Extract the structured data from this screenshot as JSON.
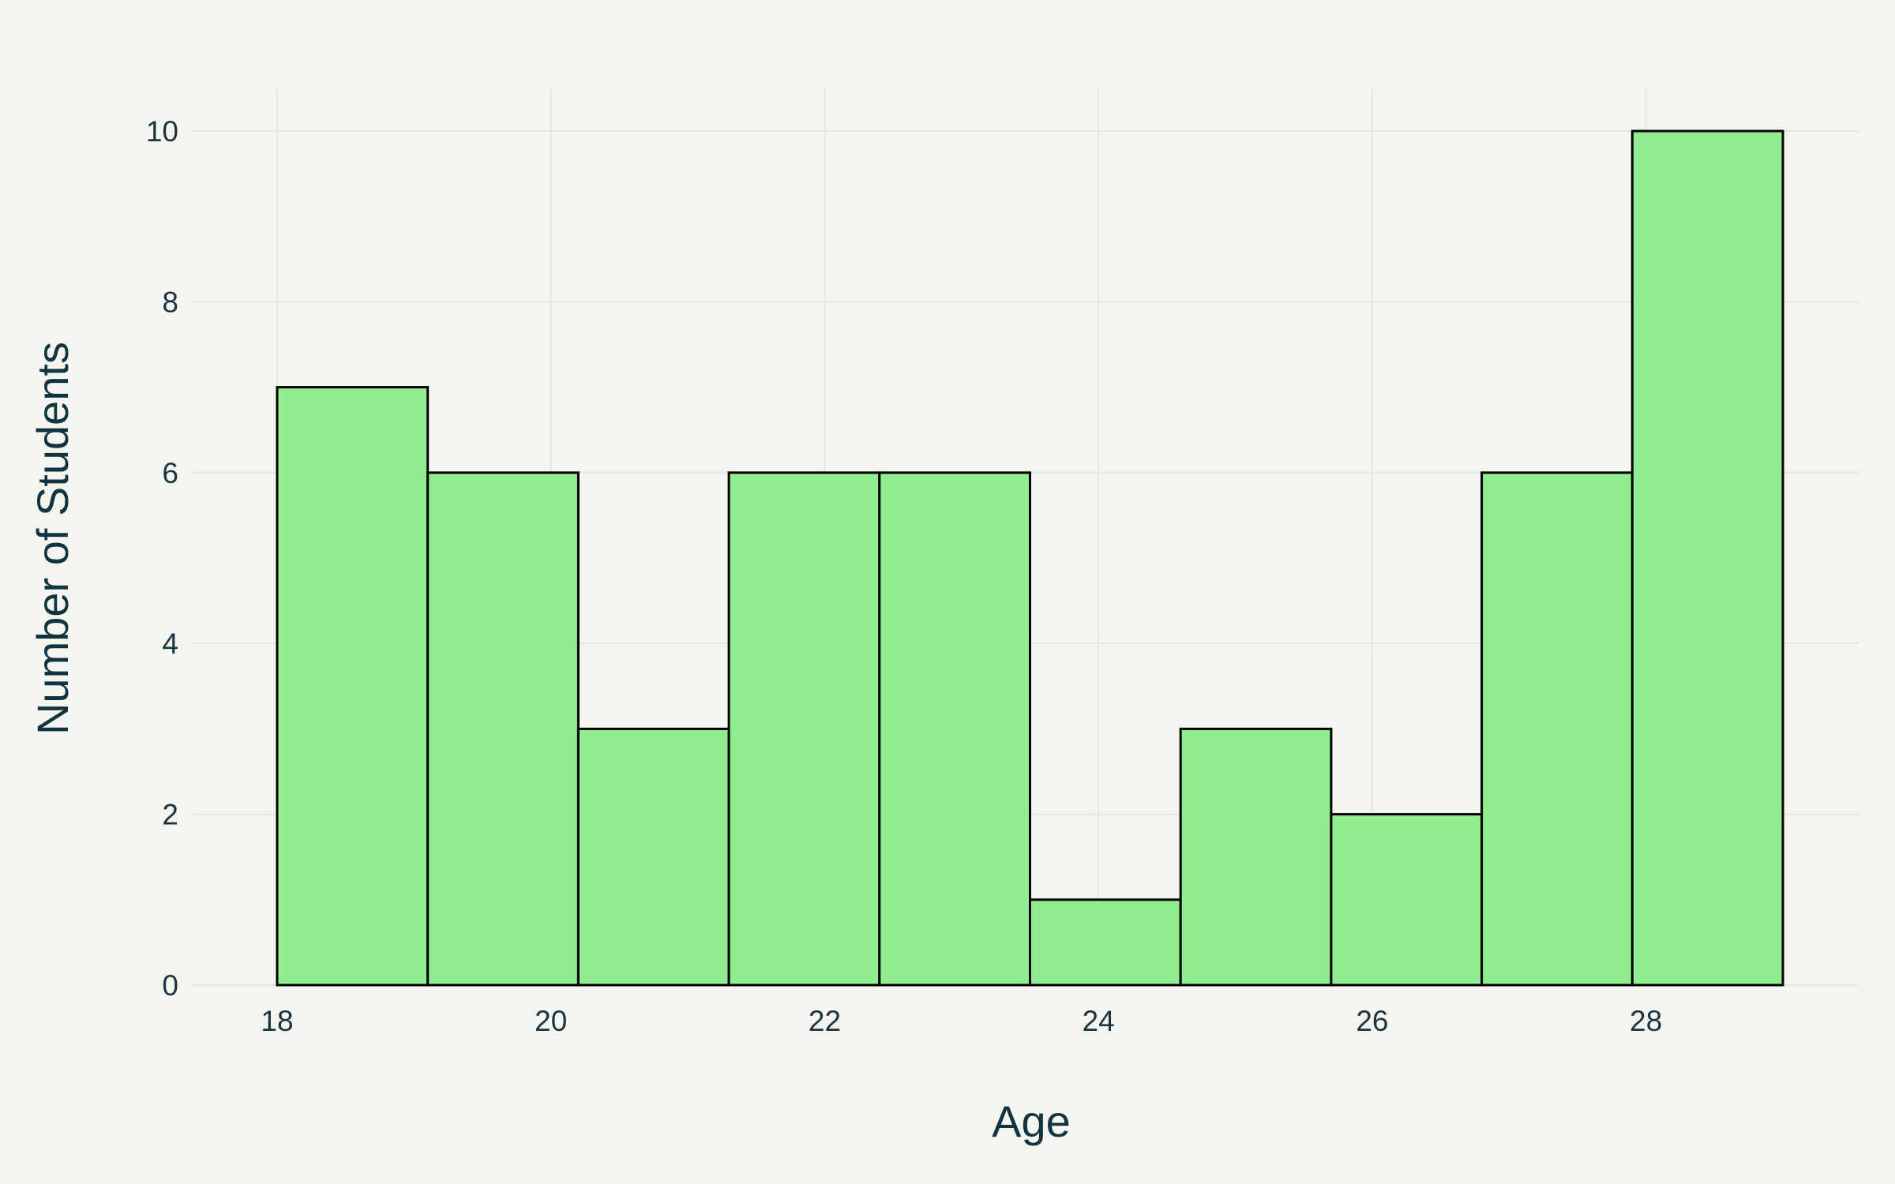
{
  "chart_data": {
    "type": "bar",
    "subtype": "histogram",
    "title": "",
    "xlabel": "Age",
    "ylabel": "Number of Students",
    "bin_edges": [
      18,
      19.1,
      20.2,
      21.3,
      22.4,
      23.5,
      24.6,
      25.7,
      26.8,
      27.9,
      29
    ],
    "values": [
      7,
      6,
      3,
      6,
      6,
      1,
      3,
      2,
      6,
      10
    ],
    "xlim": [
      17.3,
      29.7
    ],
    "ylim": [
      0,
      10.5
    ],
    "x_ticks": [
      18,
      20,
      22,
      24,
      26,
      28
    ],
    "y_ticks": [
      0,
      2,
      4,
      6,
      8,
      10
    ],
    "grid": true,
    "legend": "none",
    "colors": {
      "bar_fill": "#90ee90",
      "bar_edge": "#000000",
      "background": "#f4f5ef",
      "grid": "#e4e6e0",
      "text": "#1c3340"
    }
  }
}
